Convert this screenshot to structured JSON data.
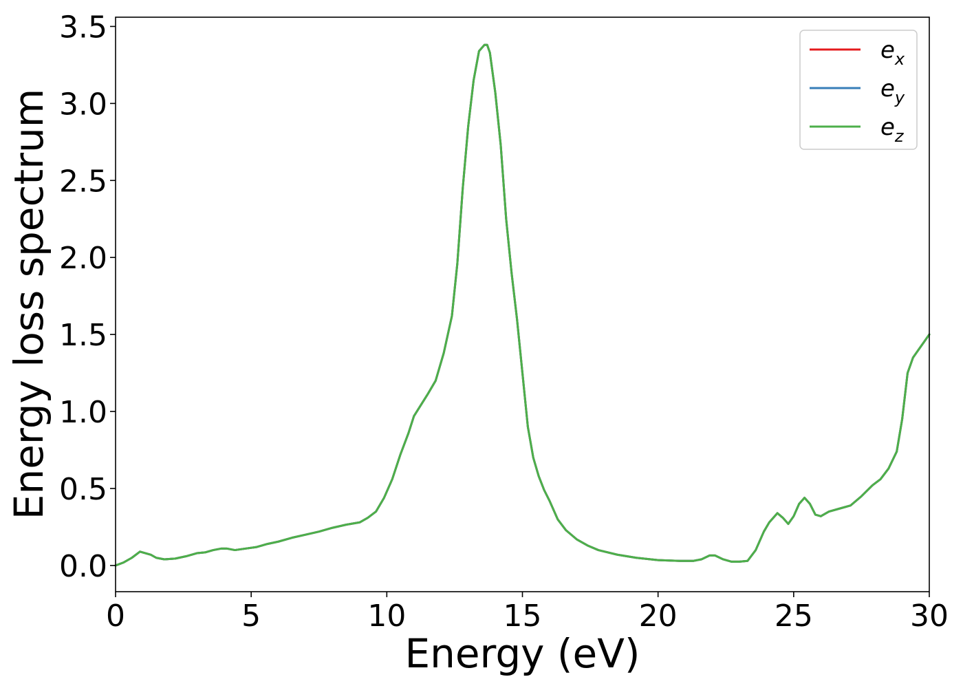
{
  "chart_data": {
    "type": "line",
    "title": "",
    "xlabel": "Energy (eV)",
    "ylabel": "Energy loss spectrum",
    "xlim": [
      0,
      30
    ],
    "ylim": [
      -0.17,
      3.56
    ],
    "xticks": [
      0,
      5,
      10,
      15,
      20,
      25,
      30
    ],
    "yticks": [
      0.0,
      0.5,
      1.0,
      1.5,
      2.0,
      2.5,
      3.0,
      3.5
    ],
    "xtick_labels": [
      "0",
      "5",
      "10",
      "15",
      "20",
      "25",
      "30"
    ],
    "ytick_labels": [
      "0.0",
      "0.5",
      "1.0",
      "1.5",
      "2.0",
      "2.5",
      "3.0",
      "3.5"
    ],
    "grid": false,
    "legend_position": "top-right",
    "x": [
      0,
      0.3,
      0.6,
      0.9,
      1.0,
      1.3,
      1.5,
      1.8,
      2.2,
      2.6,
      3.0,
      3.3,
      3.6,
      3.9,
      4.1,
      4.4,
      4.8,
      5.2,
      5.6,
      6.0,
      6.5,
      7.0,
      7.5,
      8.0,
      8.5,
      9.0,
      9.3,
      9.6,
      9.9,
      10.2,
      10.5,
      10.8,
      11.0,
      11.5,
      11.8,
      12.1,
      12.4,
      12.6,
      12.8,
      13.0,
      13.2,
      13.4,
      13.6,
      13.7,
      13.8,
      14.0,
      14.2,
      14.4,
      14.6,
      14.8,
      15.0,
      15.2,
      15.4,
      15.6,
      15.8,
      16.0,
      16.3,
      16.6,
      17.0,
      17.4,
      17.8,
      18.5,
      19.2,
      20.0,
      20.8,
      21.3,
      21.6,
      21.9,
      22.1,
      22.4,
      22.7,
      23.0,
      23.3,
      23.6,
      23.9,
      24.1,
      24.4,
      24.6,
      24.8,
      25.0,
      25.2,
      25.4,
      25.6,
      25.8,
      26.0,
      26.3,
      26.7,
      27.1,
      27.5,
      27.9,
      28.2,
      28.5,
      28.8,
      29.0,
      29.2,
      29.4,
      29.6,
      29.8,
      30.0
    ],
    "series": [
      {
        "name": "e_x",
        "color": "#e41a1c",
        "values": [
          0.0,
          0.02,
          0.05,
          0.09,
          0.085,
          0.07,
          0.05,
          0.04,
          0.045,
          0.06,
          0.08,
          0.085,
          0.1,
          0.11,
          0.11,
          0.1,
          0.11,
          0.12,
          0.14,
          0.155,
          0.18,
          0.2,
          0.22,
          0.245,
          0.265,
          0.28,
          0.31,
          0.35,
          0.44,
          0.56,
          0.72,
          0.86,
          0.97,
          1.11,
          1.2,
          1.38,
          1.62,
          1.96,
          2.45,
          2.85,
          3.15,
          3.34,
          3.38,
          3.38,
          3.33,
          3.07,
          2.73,
          2.25,
          1.9,
          1.6,
          1.25,
          0.9,
          0.7,
          0.58,
          0.49,
          0.42,
          0.3,
          0.23,
          0.17,
          0.13,
          0.1,
          0.07,
          0.05,
          0.035,
          0.03,
          0.03,
          0.04,
          0.065,
          0.065,
          0.04,
          0.025,
          0.025,
          0.03,
          0.1,
          0.22,
          0.28,
          0.34,
          0.31,
          0.27,
          0.32,
          0.4,
          0.44,
          0.4,
          0.33,
          0.32,
          0.35,
          0.37,
          0.39,
          0.45,
          0.52,
          0.56,
          0.63,
          0.74,
          0.95,
          1.25,
          1.35,
          1.4,
          1.45,
          1.5
        ]
      },
      {
        "name": "e_y",
        "color": "#377eb8",
        "values": [
          0.0,
          0.02,
          0.05,
          0.09,
          0.085,
          0.07,
          0.05,
          0.04,
          0.045,
          0.06,
          0.08,
          0.085,
          0.1,
          0.11,
          0.11,
          0.1,
          0.11,
          0.12,
          0.14,
          0.155,
          0.18,
          0.2,
          0.22,
          0.245,
          0.265,
          0.28,
          0.31,
          0.35,
          0.44,
          0.56,
          0.72,
          0.86,
          0.97,
          1.11,
          1.2,
          1.38,
          1.62,
          1.96,
          2.45,
          2.85,
          3.15,
          3.34,
          3.38,
          3.38,
          3.33,
          3.07,
          2.73,
          2.25,
          1.9,
          1.6,
          1.25,
          0.9,
          0.7,
          0.58,
          0.49,
          0.42,
          0.3,
          0.23,
          0.17,
          0.13,
          0.1,
          0.07,
          0.05,
          0.035,
          0.03,
          0.03,
          0.04,
          0.065,
          0.065,
          0.04,
          0.025,
          0.025,
          0.03,
          0.1,
          0.22,
          0.28,
          0.34,
          0.31,
          0.27,
          0.32,
          0.4,
          0.44,
          0.4,
          0.33,
          0.32,
          0.35,
          0.37,
          0.39,
          0.45,
          0.52,
          0.56,
          0.63,
          0.74,
          0.95,
          1.25,
          1.35,
          1.4,
          1.45,
          1.5
        ]
      },
      {
        "name": "e_z",
        "color": "#4daf4a",
        "values": [
          0.0,
          0.02,
          0.05,
          0.09,
          0.085,
          0.07,
          0.05,
          0.04,
          0.045,
          0.06,
          0.08,
          0.085,
          0.1,
          0.11,
          0.11,
          0.1,
          0.11,
          0.12,
          0.14,
          0.155,
          0.18,
          0.2,
          0.22,
          0.245,
          0.265,
          0.28,
          0.31,
          0.35,
          0.44,
          0.56,
          0.72,
          0.86,
          0.97,
          1.11,
          1.2,
          1.38,
          1.62,
          1.96,
          2.45,
          2.85,
          3.15,
          3.34,
          3.38,
          3.38,
          3.33,
          3.07,
          2.73,
          2.25,
          1.9,
          1.6,
          1.25,
          0.9,
          0.7,
          0.58,
          0.49,
          0.42,
          0.3,
          0.23,
          0.17,
          0.13,
          0.1,
          0.07,
          0.05,
          0.035,
          0.03,
          0.03,
          0.04,
          0.065,
          0.065,
          0.04,
          0.025,
          0.025,
          0.03,
          0.1,
          0.22,
          0.28,
          0.34,
          0.31,
          0.27,
          0.32,
          0.4,
          0.44,
          0.4,
          0.33,
          0.32,
          0.35,
          0.37,
          0.39,
          0.45,
          0.52,
          0.56,
          0.63,
          0.74,
          0.95,
          1.25,
          1.35,
          1.4,
          1.45,
          1.5
        ]
      }
    ],
    "legend": [
      {
        "base": "e",
        "sub": "x"
      },
      {
        "base": "e",
        "sub": "y"
      },
      {
        "base": "e",
        "sub": "z"
      }
    ]
  }
}
